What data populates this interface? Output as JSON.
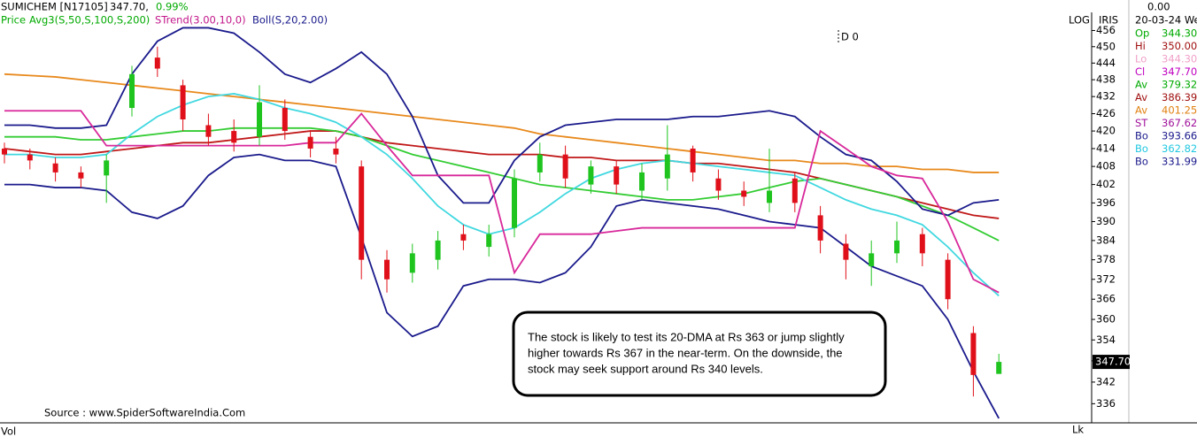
{
  "header": {
    "symbol": "SUMICHEM [N17105]",
    "price": "347.70,",
    "change": "0.99%",
    "row2": [
      "Price",
      "Avg3(S,50,S,100,S,200)",
      "STrend(3.00,10,0)",
      "Boll(S,20,2.00)"
    ]
  },
  "marker": "D 0",
  "scale_label": "LOG",
  "panel_title": "IRIS",
  "last_price_label": "347.70",
  "info_panel": {
    "top": "0.00",
    "date": "20-03-24 We",
    "rows": [
      [
        "Op",
        "344.30"
      ],
      [
        "Hi",
        "350.00"
      ],
      [
        "Lo",
        "344.30"
      ],
      [
        "Cl",
        "347.70"
      ],
      [
        "Av",
        "379.32"
      ],
      [
        "Av",
        "386.39"
      ],
      [
        "Av",
        "401.25"
      ],
      [
        "ST",
        "367.62"
      ],
      [
        "Bo",
        "393.66"
      ],
      [
        "Bo",
        "362.82"
      ],
      [
        "Bo",
        "331.99"
      ]
    ]
  },
  "annotation": [
    "The stock is likely to test its 20-DMA at Rs 363 or jump slightly",
    "higher towards Rs 367 in the near-term. On the downside, the",
    "stock may seek support around Rs 340 levels."
  ],
  "source": "Source : www.SpiderSoftwareIndia.Com",
  "footer_left": "Vol",
  "footer_right": "Lk",
  "chart_data": {
    "type": "candlestick",
    "categories": [
      null,
      null,
      null,
      null,
      null,
      null,
      null,
      null,
      null,
      null,
      null,
      null,
      null,
      null,
      null,
      null,
      null,
      null,
      null,
      null,
      null,
      null,
      null,
      null,
      null,
      null,
      null,
      null,
      null,
      null,
      null,
      null,
      null,
      null,
      null,
      null,
      null,
      null,
      null,
      null
    ],
    "open": [
      414,
      412,
      409,
      406,
      405,
      428,
      446,
      436,
      422,
      420,
      418,
      428,
      418,
      414,
      408,
      378,
      374,
      378,
      386,
      382,
      388,
      406,
      412,
      402,
      408,
      400,
      404,
      414,
      404,
      400,
      396,
      404,
      392,
      383,
      376,
      380,
      386,
      378,
      356,
      344.3
    ],
    "high": [
      416,
      414,
      411,
      408,
      412,
      443,
      450,
      438,
      426,
      424,
      436,
      431,
      420,
      418,
      410,
      381,
      383,
      387,
      389,
      389,
      407,
      416,
      415,
      410,
      410,
      409,
      422,
      415,
      407,
      403,
      414,
      406,
      395,
      386,
      384,
      390,
      388,
      380,
      358,
      350
    ],
    "low": [
      409,
      407,
      403,
      401,
      396,
      425,
      439,
      420,
      415,
      413,
      415,
      417,
      411,
      409,
      372,
      368,
      371,
      375,
      381,
      379,
      385,
      403,
      401,
      399,
      399,
      397,
      400,
      403,
      397,
      395,
      393,
      393,
      380,
      372,
      370,
      377,
      376,
      363,
      338,
      344.3
    ],
    "close": [
      412,
      410,
      406,
      404,
      410,
      440,
      442,
      424,
      418,
      416,
      430,
      420,
      414,
      412,
      378,
      372,
      380,
      384,
      384,
      386,
      404,
      412,
      404,
      408,
      402,
      406,
      412,
      406,
      400,
      398,
      400,
      396,
      384,
      378,
      380,
      384,
      380,
      366,
      344,
      347.7
    ],
    "up_color": "#1fc41f",
    "down_color": "#e0101a",
    "series": [
      {
        "color": "#e8891c",
        "values": [
          440,
          439.5,
          439,
          438,
          437,
          436,
          435,
          434,
          433,
          432,
          431,
          430,
          429,
          428,
          427,
          426,
          425,
          424,
          423,
          422,
          421,
          419,
          418,
          417,
          416,
          415,
          414,
          413,
          412,
          411,
          410,
          410,
          409,
          409,
          408,
          408,
          407,
          407,
          406,
          406
        ]
      },
      {
        "color": "#c01818",
        "values": [
          414,
          413,
          412,
          412,
          413,
          414,
          415,
          416,
          416,
          417,
          418,
          419,
          420,
          420,
          418,
          416,
          415,
          414,
          413,
          412,
          412,
          412,
          411,
          411,
          410,
          410,
          410,
          409,
          409,
          408,
          407,
          406,
          404,
          402,
          400,
          398,
          396,
          394,
          392,
          391
        ]
      },
      {
        "color": "#33cc33",
        "values": [
          418,
          418,
          418,
          417,
          417,
          418,
          419,
          420,
          420,
          421,
          421,
          421,
          421,
          420,
          418,
          415,
          412,
          410,
          408,
          406,
          404,
          402,
          401,
          400,
          399,
          398,
          397,
          397,
          398,
          399,
          401,
          403,
          404,
          402,
          400,
          398,
          395,
          392,
          388,
          384
        ]
      },
      {
        "color": "#40d8e0",
        "values": [
          412,
          412,
          411,
          411,
          412,
          419,
          425,
          429,
          432,
          433,
          431,
          428,
          426,
          423,
          418,
          412,
          404,
          395,
          389,
          386,
          388,
          393,
          399,
          404,
          407,
          409,
          410,
          409,
          408,
          407,
          406,
          405,
          401,
          397,
          394,
          392,
          389,
          382,
          374,
          367
        ]
      },
      {
        "color": "#1a1a8c",
        "values": [
          422,
          422,
          421,
          421,
          422,
          440,
          452,
          457,
          457,
          455,
          448,
          440,
          437,
          442,
          448,
          440,
          425,
          405,
          396,
          396,
          410,
          418,
          422,
          423,
          424,
          424,
          424,
          425,
          425,
          426,
          427,
          425,
          418,
          412,
          410,
          403,
          394,
          392,
          396,
          397
        ]
      },
      {
        "color": "#1a1a8c",
        "values": [
          402,
          402,
          401,
          401,
          400,
          393,
          391,
          395,
          405,
          411,
          412,
          410,
          410,
          408,
          385,
          362,
          355,
          358,
          370,
          372,
          372,
          371,
          374,
          382,
          395,
          397,
          396,
          395,
          394,
          392,
          390,
          389,
          388,
          382,
          376,
          373,
          370,
          360,
          345,
          332
        ]
      },
      {
        "color": "#d8289a",
        "values": [
          427,
          427,
          427,
          427,
          415,
          415,
          415,
          415,
          415,
          415,
          415,
          415,
          416,
          416,
          426,
          415,
          405,
          405,
          405,
          405,
          374,
          386,
          386,
          386,
          387,
          388,
          388,
          388,
          388,
          388,
          388,
          388,
          420,
          414,
          408,
          405,
          404,
          390,
          372,
          368
        ]
      }
    ],
    "ylim": [
      331.5,
      460.8
    ],
    "yticks": [
      336,
      342,
      348,
      354,
      360,
      366,
      372,
      378,
      384,
      390,
      396,
      402,
      408,
      414,
      420,
      426,
      432,
      438,
      444,
      450,
      456
    ],
    "log_scale": true
  }
}
